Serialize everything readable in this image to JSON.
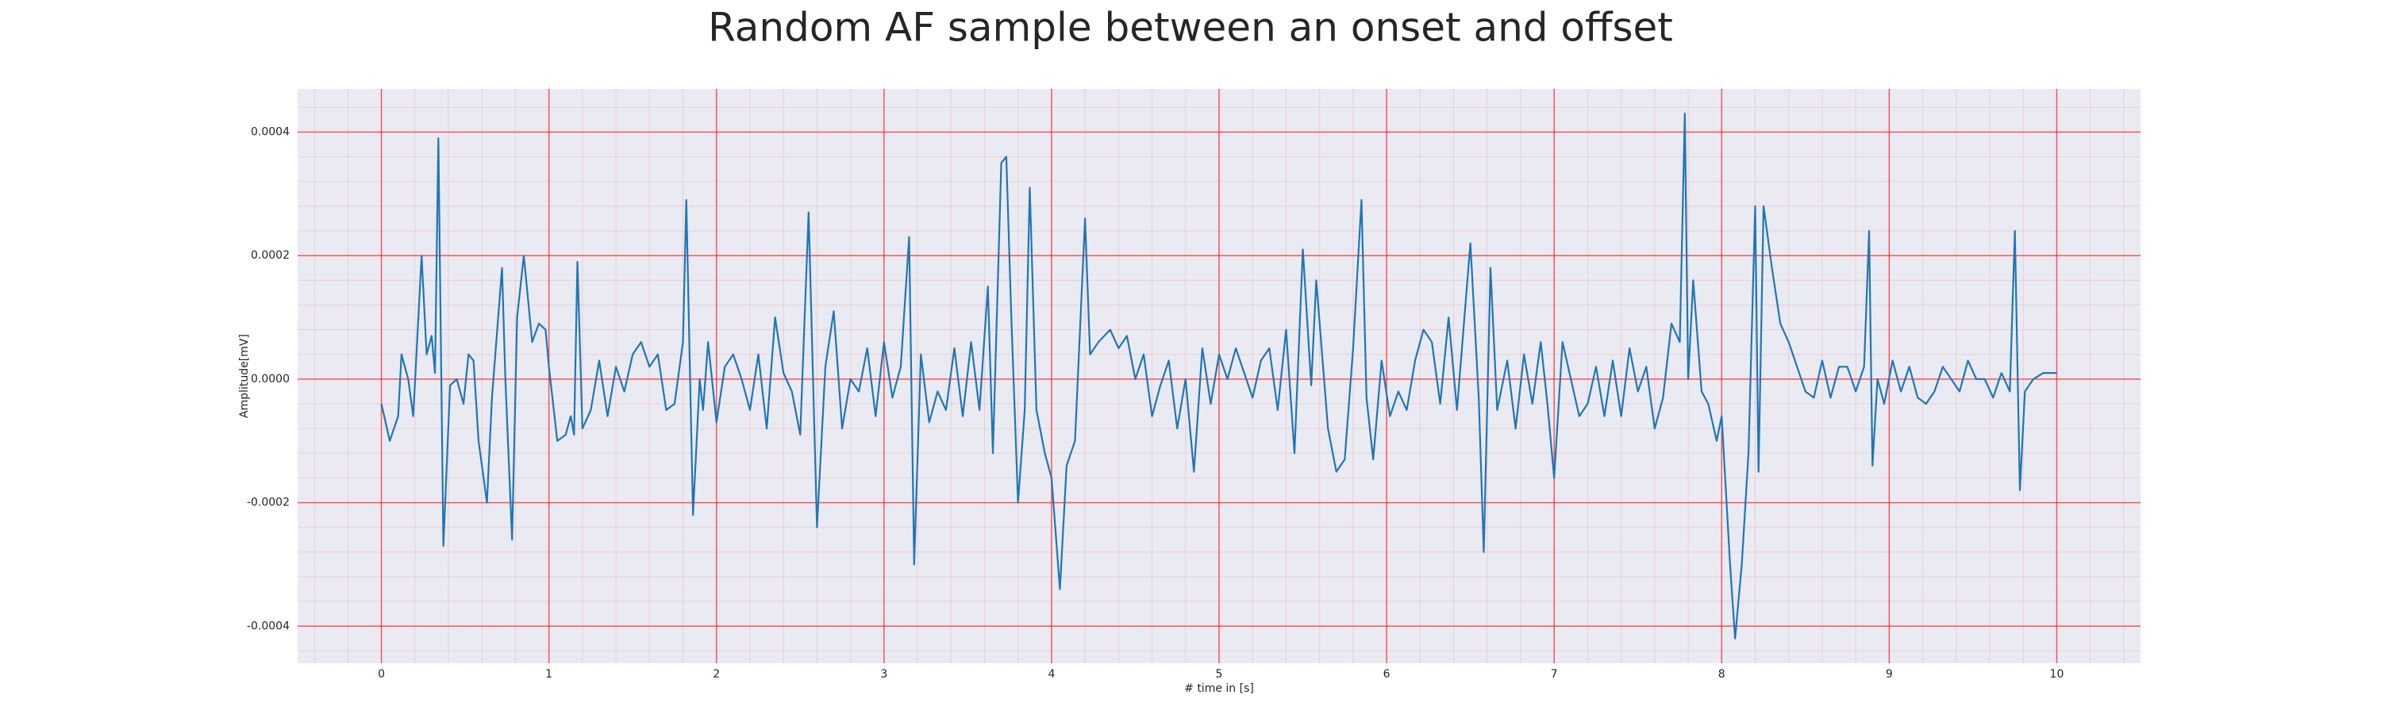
{
  "chart_data": {
    "type": "line",
    "title": "Random AF sample between an onset and offset",
    "xlabel": "# time in [s]",
    "ylabel": "Amplitude[mV]",
    "xlim": [
      -0.5,
      10.5
    ],
    "ylim": [
      -0.00046,
      0.00047
    ],
    "xticks": [
      0,
      1,
      2,
      3,
      4,
      5,
      6,
      7,
      8,
      9,
      10
    ],
    "yticks": [
      -0.0004,
      -0.0002,
      {
        "value": 0,
        "label": "0.0000"
      },
      0.0002,
      0.0004
    ],
    "grid": true,
    "minor_grid": true,
    "grid_color": "#ff0000",
    "background": "#eaeaf2",
    "x": [
      0.0,
      0.05,
      0.1,
      0.12,
      0.16,
      0.19,
      0.24,
      0.27,
      0.3,
      0.32,
      0.34,
      0.37,
      0.41,
      0.45,
      0.49,
      0.52,
      0.55,
      0.58,
      0.63,
      0.66,
      0.72,
      0.74,
      0.78,
      0.81,
      0.85,
      0.9,
      0.94,
      0.98,
      1.0,
      1.05,
      1.1,
      1.13,
      1.15,
      1.17,
      1.2,
      1.25,
      1.3,
      1.35,
      1.4,
      1.45,
      1.5,
      1.55,
      1.6,
      1.65,
      1.7,
      1.75,
      1.8,
      1.82,
      1.86,
      1.9,
      1.92,
      1.95,
      2.0,
      2.05,
      2.1,
      2.15,
      2.2,
      2.25,
      2.3,
      2.35,
      2.4,
      2.45,
      2.5,
      2.55,
      2.6,
      2.65,
      2.7,
      2.75,
      2.8,
      2.85,
      2.9,
      2.95,
      3.0,
      3.05,
      3.1,
      3.15,
      3.18,
      3.22,
      3.27,
      3.32,
      3.37,
      3.42,
      3.47,
      3.52,
      3.57,
      3.62,
      3.65,
      3.7,
      3.73,
      3.76,
      3.8,
      3.84,
      3.87,
      3.91,
      3.96,
      4.0,
      4.05,
      4.09,
      4.14,
      4.2,
      4.23,
      4.28,
      4.35,
      4.4,
      4.45,
      4.5,
      4.55,
      4.6,
      4.65,
      4.7,
      4.75,
      4.8,
      4.85,
      4.9,
      4.95,
      5.0,
      5.05,
      5.1,
      5.15,
      5.2,
      5.25,
      5.3,
      5.35,
      5.4,
      5.45,
      5.5,
      5.55,
      5.58,
      5.65,
      5.7,
      5.75,
      5.8,
      5.85,
      5.88,
      5.92,
      5.97,
      6.02,
      6.07,
      6.12,
      6.17,
      6.22,
      6.27,
      6.32,
      6.37,
      6.42,
      6.5,
      6.55,
      6.58,
      6.62,
      6.66,
      6.72,
      6.77,
      6.82,
      6.87,
      6.92,
      6.96,
      7.0,
      7.05,
      7.1,
      7.15,
      7.2,
      7.25,
      7.3,
      7.35,
      7.4,
      7.45,
      7.5,
      7.55,
      7.6,
      7.65,
      7.7,
      7.75,
      7.78,
      7.8,
      7.83,
      7.88,
      7.92,
      7.97,
      8.0,
      8.05,
      8.08,
      8.12,
      8.16,
      8.2,
      8.22,
      8.25,
      8.3,
      8.35,
      8.4,
      8.45,
      8.5,
      8.55,
      8.6,
      8.65,
      8.7,
      8.75,
      8.8,
      8.85,
      8.88,
      8.9,
      8.93,
      8.97,
      9.02,
      9.07,
      9.12,
      9.17,
      9.22,
      9.27,
      9.32,
      9.37,
      9.42,
      9.47,
      9.52,
      9.57,
      9.62,
      9.67,
      9.72,
      9.75,
      9.78,
      9.81,
      9.86,
      9.92,
      10.0
    ],
    "series": [
      {
        "color": "#1f77b4",
        "values": [
          -4e-05,
          -0.0001,
          -6e-05,
          4e-05,
          0,
          -6e-05,
          0.0002,
          4e-05,
          7e-05,
          1e-05,
          0.00039,
          -0.00027,
          -1e-05,
          0,
          -4e-05,
          4e-05,
          3e-05,
          -0.0001,
          -0.0002,
          -3e-05,
          0.00018,
          0,
          -0.00026,
          0.0001,
          0.0002,
          6e-05,
          9e-05,
          8e-05,
          2e-05,
          -0.0001,
          -9e-05,
          -6e-05,
          -9e-05,
          0.00019,
          -8e-05,
          -5e-05,
          3e-05,
          -6e-05,
          2e-05,
          -2e-05,
          4e-05,
          6e-05,
          2e-05,
          4e-05,
          -5e-05,
          -4e-05,
          6e-05,
          0.00029,
          -0.00022,
          0,
          -5e-05,
          6e-05,
          -7e-05,
          2e-05,
          4e-05,
          0,
          -5e-05,
          4e-05,
          -8e-05,
          0.0001,
          1e-05,
          -2e-05,
          -9e-05,
          0.00027,
          -0.00024,
          2e-05,
          0.00011,
          -8e-05,
          0,
          -2e-05,
          5e-05,
          -6e-05,
          6e-05,
          -3e-05,
          2e-05,
          0.00023,
          -0.0003,
          4e-05,
          -7e-05,
          -2e-05,
          -5e-05,
          5e-05,
          -6e-05,
          6e-05,
          -5e-05,
          0.00015,
          -0.00012,
          0.00035,
          0.00036,
          0.0001,
          -0.0002,
          -5e-05,
          0.00031,
          -5e-05,
          -0.00012,
          -0.00016,
          -0.00034,
          -0.00014,
          -0.0001,
          0.00026,
          4e-05,
          6e-05,
          8e-05,
          5e-05,
          7e-05,
          0,
          4e-05,
          -6e-05,
          -1e-05,
          3e-05,
          -8e-05,
          0,
          -0.00015,
          5e-05,
          -4e-05,
          4e-05,
          0,
          5e-05,
          1e-05,
          -3e-05,
          3e-05,
          5e-05,
          -5e-05,
          8e-05,
          -0.00012,
          0.00021,
          -1e-05,
          0.00016,
          -8e-05,
          -0.00015,
          -0.00013,
          5e-05,
          0.00029,
          -3e-05,
          -0.00013,
          3e-05,
          -6e-05,
          -2e-05,
          -5e-05,
          3e-05,
          8e-05,
          6e-05,
          -4e-05,
          0.0001,
          -5e-05,
          0.00022,
          -3e-05,
          -0.00028,
          0.00018,
          -5e-05,
          3e-05,
          -8e-05,
          4e-05,
          -4e-05,
          6e-05,
          -4e-05,
          -0.00016,
          6e-05,
          0,
          -6e-05,
          -4e-05,
          2e-05,
          -6e-05,
          3e-05,
          -6e-05,
          5e-05,
          -2e-05,
          2e-05,
          -8e-05,
          -3e-05,
          9e-05,
          6e-05,
          0.00043,
          0,
          0.00016,
          -2e-05,
          -4e-05,
          -0.0001,
          -6e-05,
          -0.0003,
          -0.00042,
          -0.0003,
          -0.00012,
          0.00028,
          -0.00015,
          0.00028,
          0.00018,
          9e-05,
          6e-05,
          2e-05,
          -2e-05,
          -3e-05,
          3e-05,
          -3e-05,
          2e-05,
          2e-05,
          -2e-05,
          2e-05,
          0.00024,
          -0.00014,
          0,
          -4e-05,
          3e-05,
          -2e-05,
          2e-05,
          -3e-05,
          -4e-05,
          -2e-05,
          2e-05,
          0,
          -2e-05,
          3e-05,
          0,
          0,
          -3e-05,
          1e-05,
          -2e-05,
          0.00024,
          -0.00018,
          -2e-05,
          0,
          1e-05,
          1e-05
        ]
      }
    ]
  }
}
